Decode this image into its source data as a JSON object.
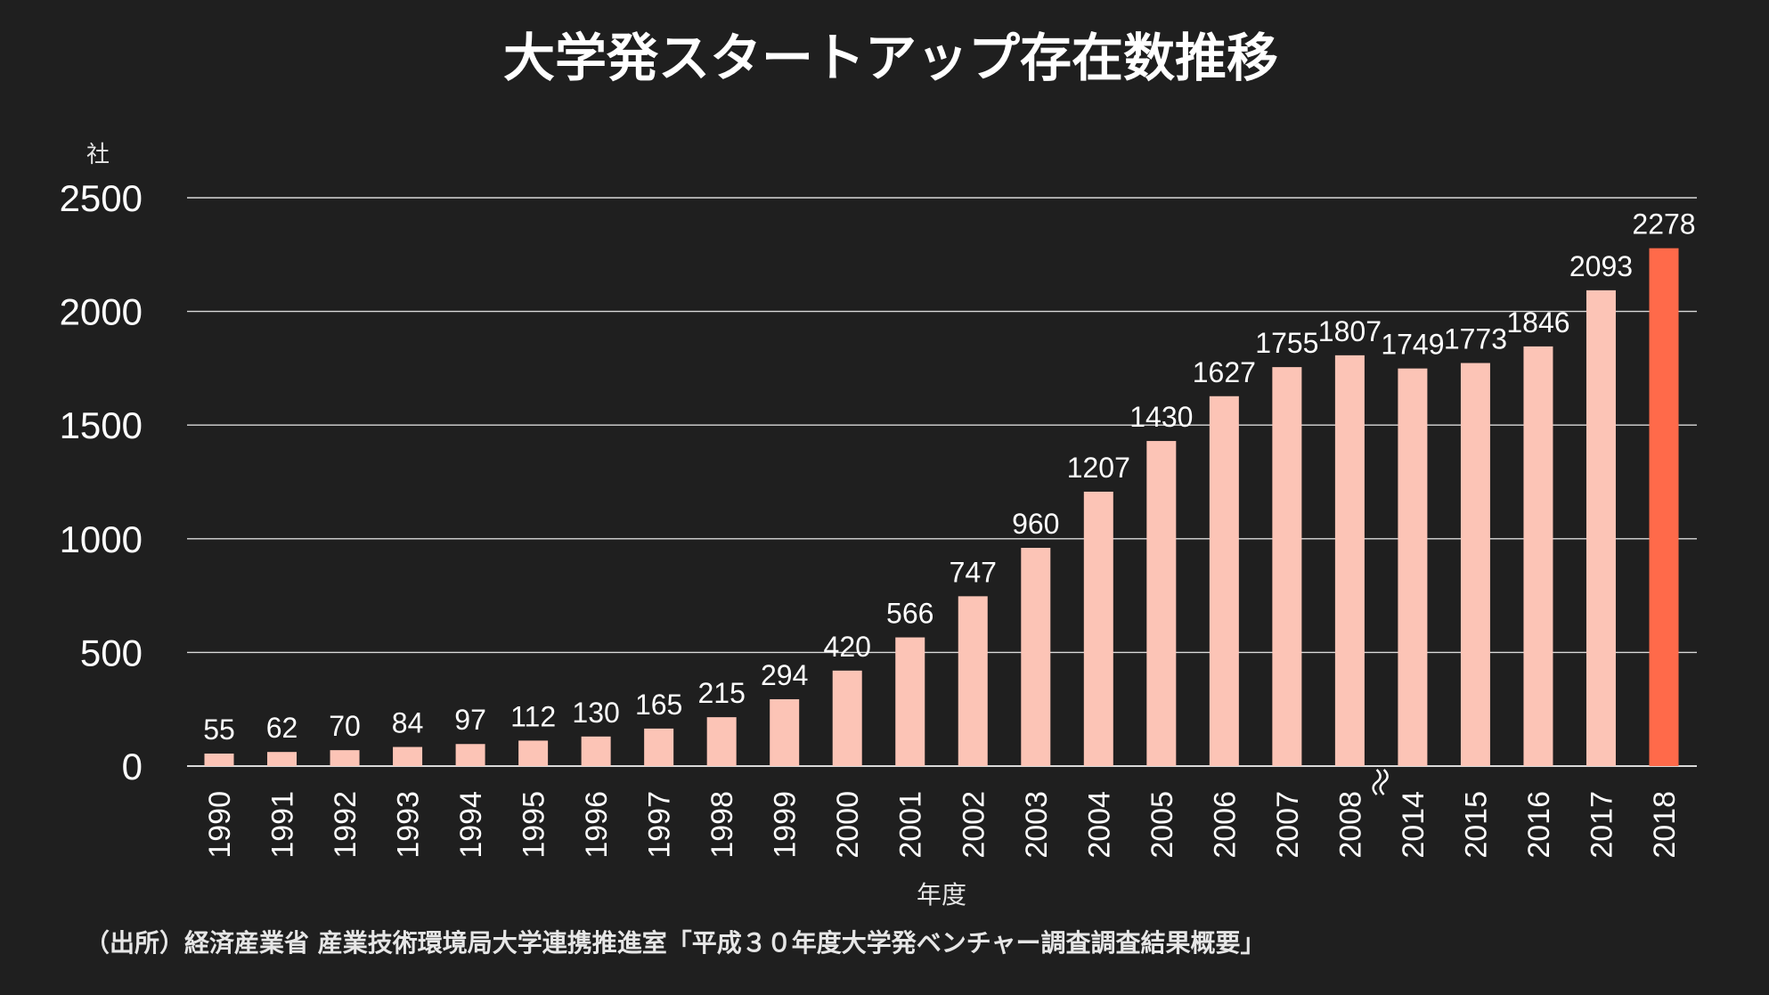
{
  "chart_data": {
    "type": "bar",
    "title": "大学発スタートアップ存在数推移",
    "ylabel": "社",
    "xlabel": "年度",
    "ylim": [
      0,
      2500
    ],
    "yticks": [
      0,
      500,
      1000,
      1500,
      2000,
      2500
    ],
    "grid": true,
    "axis_break_after": "2008",
    "categories": [
      "1990",
      "1991",
      "1992",
      "1993",
      "1994",
      "1995",
      "1996",
      "1997",
      "1998",
      "1999",
      "2000",
      "2001",
      "2002",
      "2003",
      "2004",
      "2005",
      "2006",
      "2007",
      "2008",
      "2014",
      "2015",
      "2016",
      "2017",
      "2018"
    ],
    "values": [
      55,
      62,
      70,
      84,
      97,
      112,
      130,
      165,
      215,
      294,
      420,
      566,
      747,
      960,
      1207,
      1430,
      1627,
      1755,
      1807,
      1749,
      1773,
      1846,
      2093,
      2278
    ],
    "highlight": "2018",
    "colors": {
      "background": "#1f1f1f",
      "bar": "#fcc4b6",
      "highlight_bar": "#ff6a4a",
      "grid": "#d9d9d9",
      "text": "#ffffff"
    }
  },
  "source_note": "（出所）経済産業省 産業技術環境局大学連携推進室「平成３０年度大学発ベンチャー調査調査結果概要」"
}
